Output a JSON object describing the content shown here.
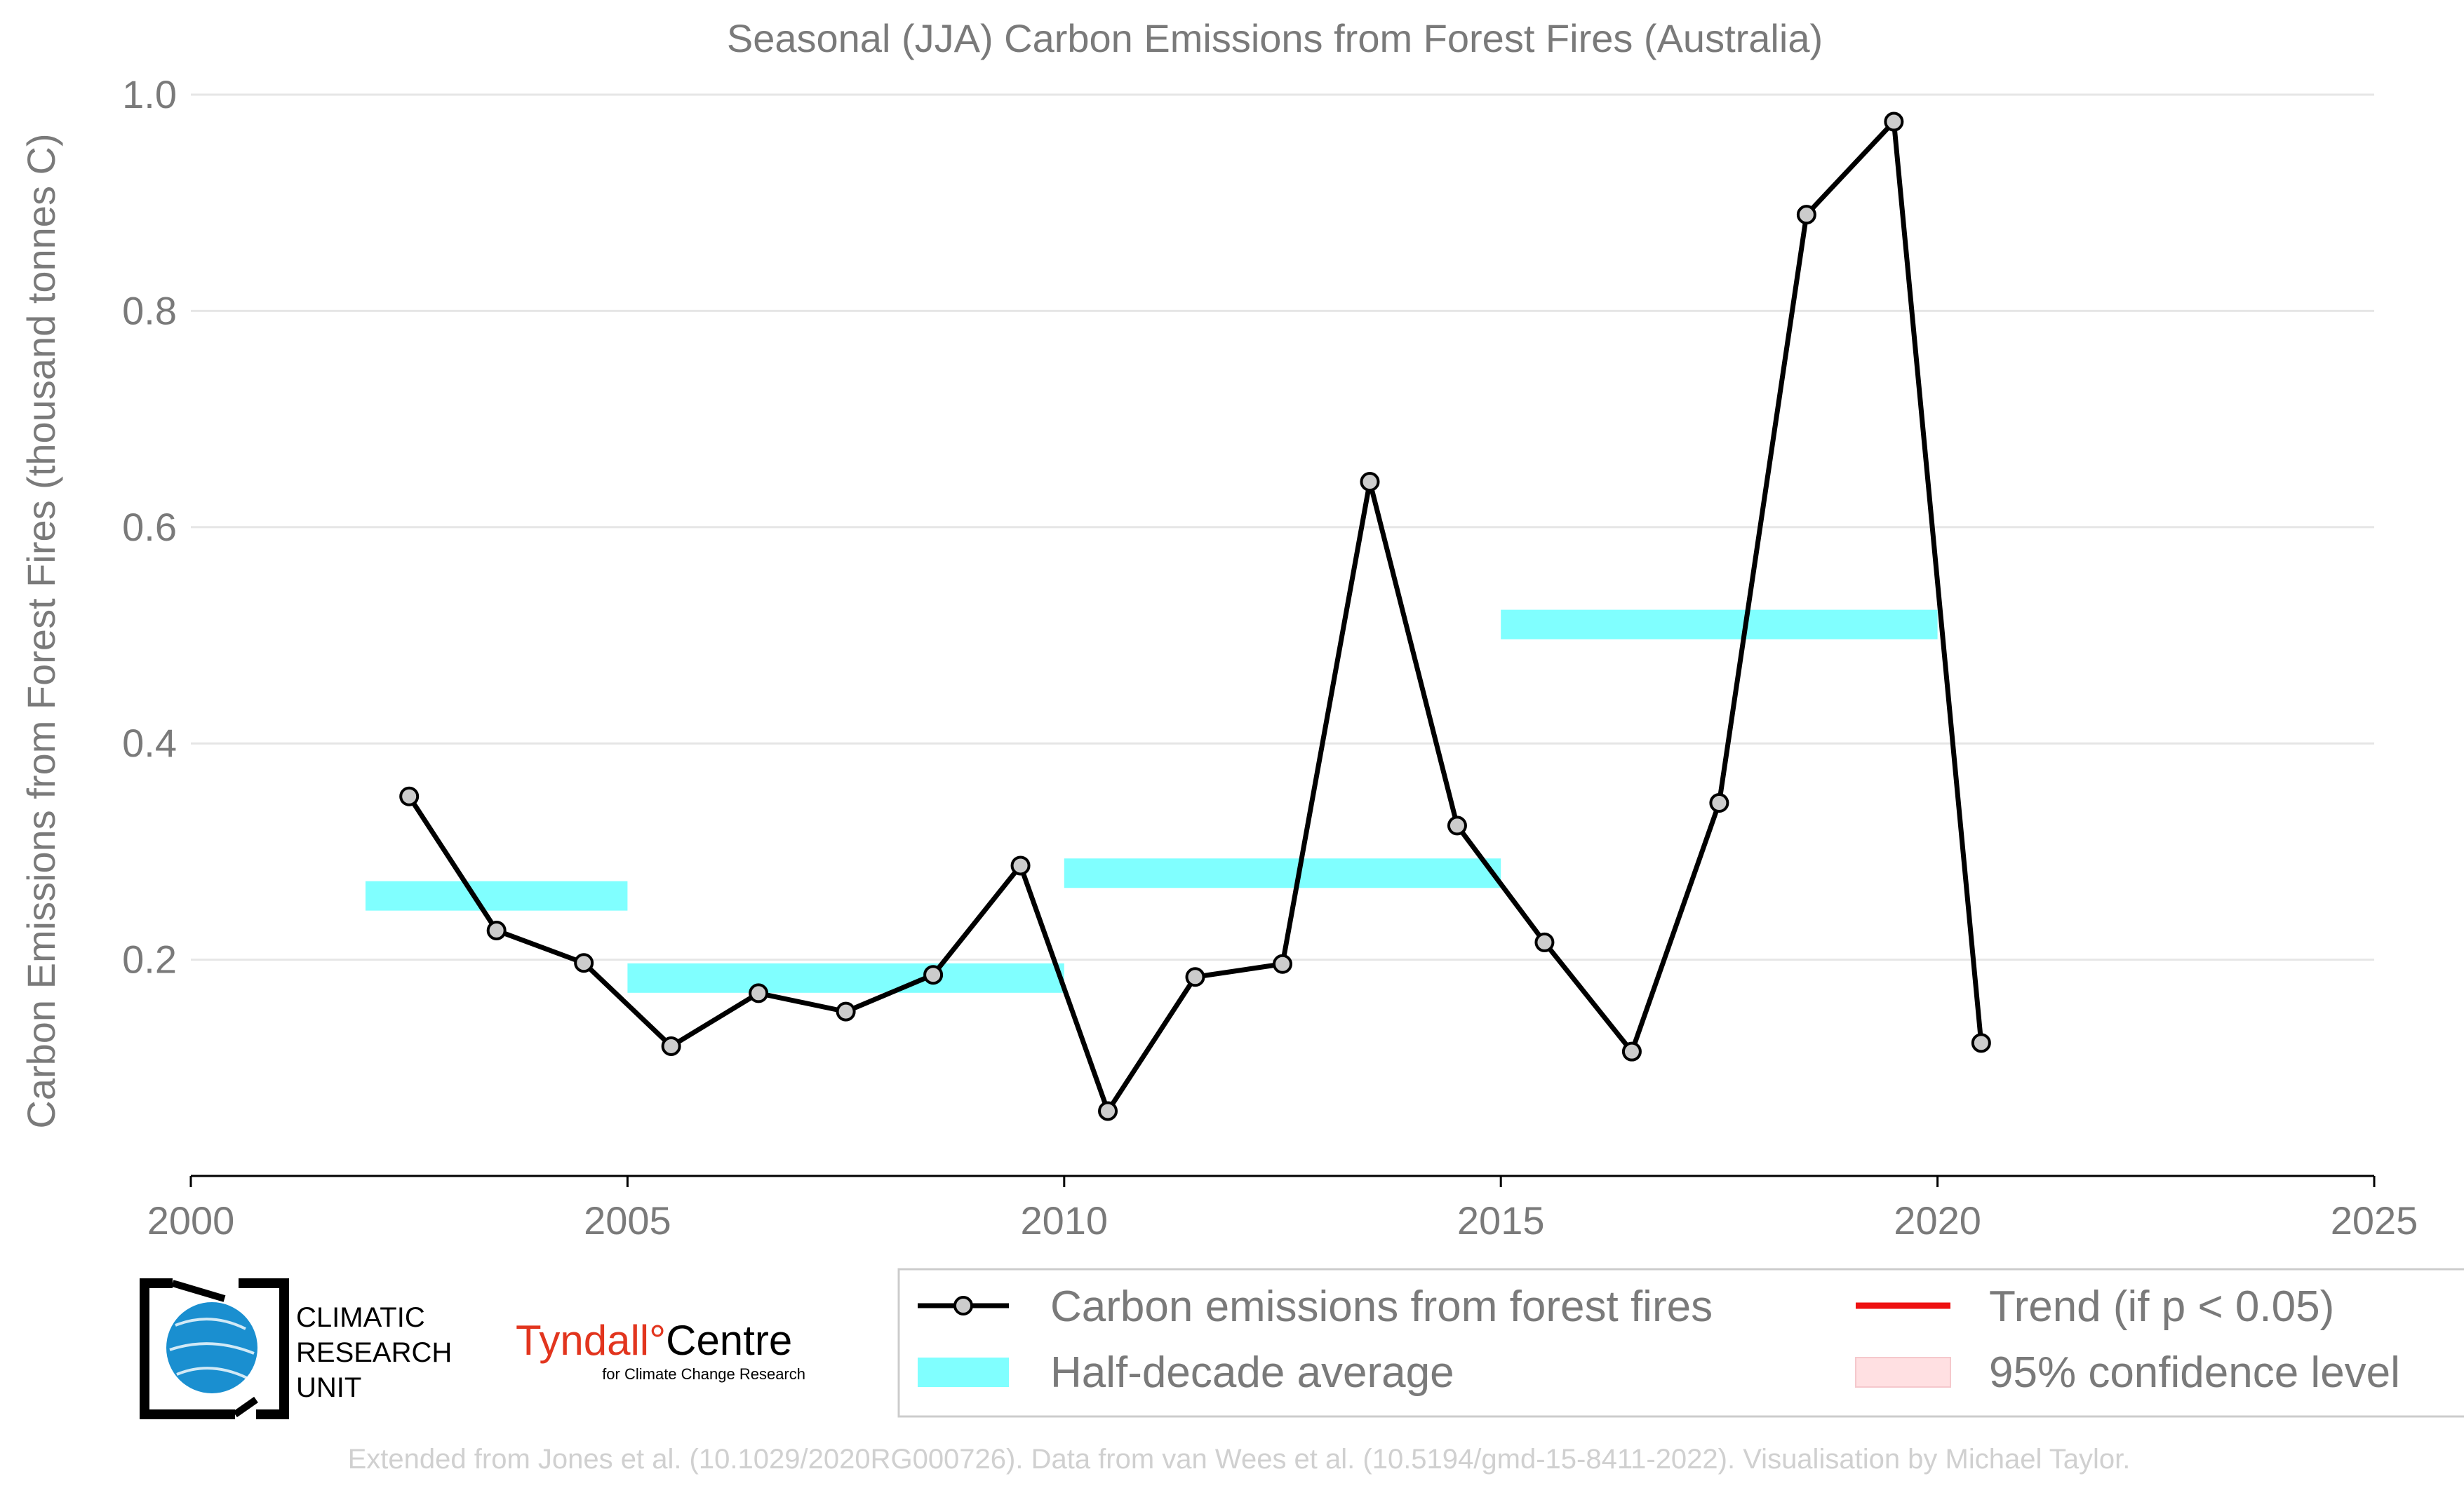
{
  "chart_data": {
    "type": "line",
    "title": "Seasonal (JJA) Carbon Emissions from Forest Fires (Australia)",
    "ylabel": "Carbon Emissions from Forest Fires (thousand tonnes C)",
    "xlabel": "",
    "xlim": [
      2000,
      2025
    ],
    "ylim": [
      0,
      1.0
    ],
    "xticks": [
      "2000",
      "2005",
      "2010",
      "2015",
      "2020",
      "2025"
    ],
    "yticks": [
      "0.2",
      "0.4",
      "0.6",
      "0.8",
      "1.0"
    ],
    "grid": "horizontal",
    "series": [
      {
        "name": "Carbon emissions from forest fires",
        "color": "#000000",
        "marker_fill": "#cccccc",
        "x": [
          2002.5,
          2003.5,
          2004.5,
          2005.5,
          2006.5,
          2007.5,
          2008.5,
          2009.5,
          2010.5,
          2011.5,
          2012.5,
          2013.5,
          2014.5,
          2015.5,
          2016.5,
          2017.5,
          2018.5,
          2019.5,
          2020.5
        ],
        "values": [
          0.351,
          0.227,
          0.197,
          0.12,
          0.169,
          0.152,
          0.186,
          0.287,
          0.06,
          0.184,
          0.196,
          0.642,
          0.324,
          0.216,
          0.115,
          0.345,
          0.889,
          0.975,
          0.123
        ]
      }
    ],
    "half_decade_average": {
      "name": "Half-decade average",
      "color": "#80ffff",
      "segments": [
        {
          "x0": 2002,
          "x1": 2005,
          "value": 0.259
        },
        {
          "x0": 2005,
          "x1": 2010,
          "value": 0.183
        },
        {
          "x0": 2010,
          "x1": 2015,
          "value": 0.28
        },
        {
          "x0": 2015,
          "x1": 2020,
          "value": 0.51
        }
      ]
    },
    "legend": {
      "placement": "bottom-right",
      "entries": [
        {
          "label": "Carbon emissions from forest fires",
          "kind": "line-marker",
          "color": "#000000"
        },
        {
          "label": "Trend (if p < 0.05)",
          "kind": "line",
          "color": "#ee1111"
        },
        {
          "label": "Half-decade average",
          "kind": "band",
          "color": "#80ffff"
        },
        {
          "label": "95% confidence level",
          "kind": "band",
          "color": "#ffe0e2"
        }
      ]
    }
  },
  "logos": {
    "cru": {
      "line1": "CLIMATIC",
      "line2": "RESEARCH",
      "line3": "UNIT"
    },
    "tyndall": {
      "part1": "Tyndall",
      "degree": "°",
      "part2": "Centre",
      "sub": "for Climate Change Research"
    }
  },
  "footer": "Extended from Jones et al. (10.1029/2020RG000726). Data from van Wees et al. (10.5194/gmd-15-8411-2022). Visualisation by Michael Taylor.",
  "colors": {
    "axis_text": "#7a7a7a",
    "grid": "#e6e6e6",
    "footer_text": "#d0d0d0",
    "cru_blue": "#1a8fd0"
  }
}
